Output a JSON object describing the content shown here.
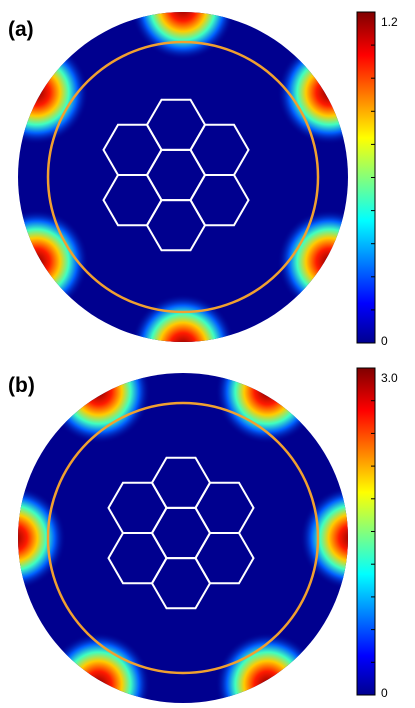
{
  "panels": [
    {
      "label": "(a)",
      "colorbar": {
        "max": "1.2",
        "min": "0"
      }
    },
    {
      "label": "(b)",
      "colorbar": {
        "max": "3.0",
        "min": "0"
      }
    }
  ]
}
